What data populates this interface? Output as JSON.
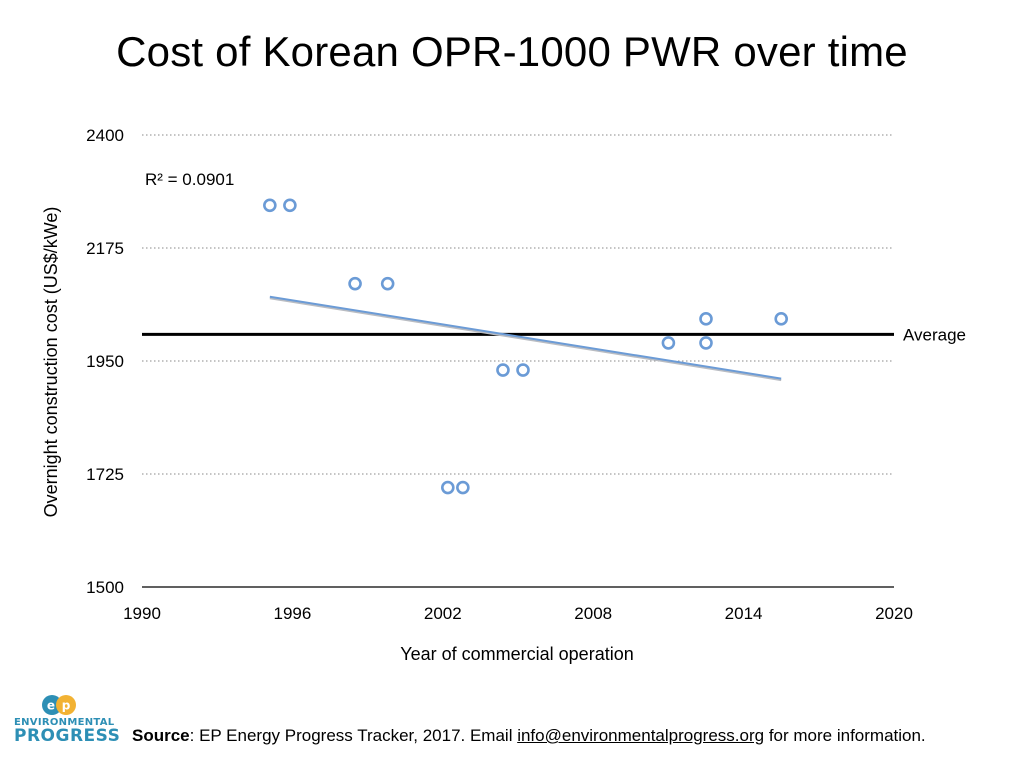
{
  "page": {
    "title": "Cost of Korean OPR-1000 PWR over time"
  },
  "chart_data": {
    "type": "scatter",
    "title": "Cost of Korean OPR-1000 PWR over time",
    "xlabel": "Year of commercial operation",
    "ylabel": "Overnight construction cost (US$/kWe)",
    "xlim": [
      1990,
      2020
    ],
    "ylim": [
      1500,
      2400
    ],
    "xticks": [
      1990,
      1996,
      2002,
      2008,
      2014,
      2020
    ],
    "yticks": [
      1500,
      1725,
      1950,
      2175,
      2400
    ],
    "grid": "horizontal-dotted",
    "points": [
      {
        "x": 1995.1,
        "y": 2260
      },
      {
        "x": 1995.9,
        "y": 2260
      },
      {
        "x": 1998.5,
        "y": 2104
      },
      {
        "x": 1999.8,
        "y": 2104
      },
      {
        "x": 2004.4,
        "y": 1932
      },
      {
        "x": 2005.2,
        "y": 1932
      },
      {
        "x": 2002.2,
        "y": 1698
      },
      {
        "x": 2002.8,
        "y": 1698
      },
      {
        "x": 2011.0,
        "y": 1986
      },
      {
        "x": 2012.5,
        "y": 1986
      },
      {
        "x": 2012.5,
        "y": 2034
      },
      {
        "x": 2015.5,
        "y": 2034
      }
    ],
    "trendline": {
      "x0": 1995.1,
      "y0": 2078,
      "x1": 2015.5,
      "y1": 1915,
      "color": "#6b9bd6"
    },
    "r_squared_label": "R² = 0.0901",
    "average": {
      "value": 2003,
      "label": "Average"
    },
    "marker_color": "#6b9bd6"
  },
  "footer": {
    "source_label": "Source",
    "source_text": ": EP Energy Progress Tracker, 2017. Email ",
    "email": "info@environmentalprogress.org",
    "source_tail": " for more information."
  },
  "logo": {
    "mark_text": "EP",
    "line1": "ENVIRONMENTAL",
    "line2": "PROGRESS"
  }
}
